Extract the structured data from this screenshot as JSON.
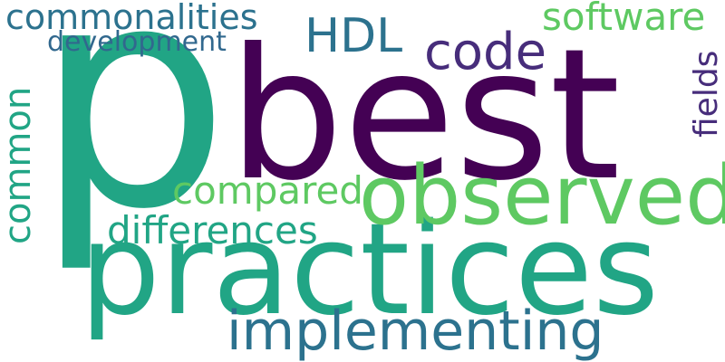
{
  "words": [
    {
      "key": "p",
      "text": "p",
      "color": "#21a585"
    },
    {
      "key": "best",
      "text": "best",
      "color": "#440154"
    },
    {
      "key": "practices",
      "text": "practices",
      "color": "#21a585"
    },
    {
      "key": "observed",
      "text": "observed",
      "color": "#5ec962"
    },
    {
      "key": "implementing",
      "text": "implementing",
      "color": "#2c728e"
    },
    {
      "key": "code",
      "text": "code",
      "color": "#472d7b"
    },
    {
      "key": "hdl",
      "text": "HDL",
      "color": "#2c728e"
    },
    {
      "key": "commonalities",
      "text": "commonalities",
      "color": "#2c728e"
    },
    {
      "key": "development",
      "text": "development",
      "color": "#31688e"
    },
    {
      "key": "software",
      "text": "software",
      "color": "#5ec962"
    },
    {
      "key": "compared",
      "text": "compared",
      "color": "#5ec962"
    },
    {
      "key": "differences",
      "text": "differences",
      "color": "#21a585"
    },
    {
      "key": "common",
      "text": "common",
      "color": "#21a585"
    },
    {
      "key": "fields",
      "text": "fields",
      "color": "#472d7b"
    }
  ]
}
